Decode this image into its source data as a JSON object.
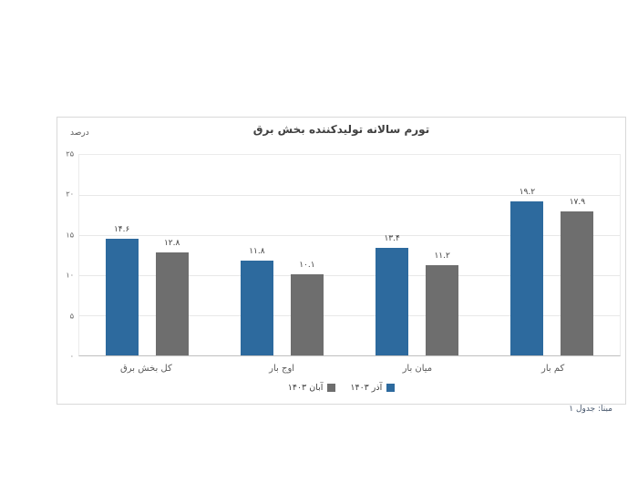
{
  "page": {
    "source_note": "مبنا: جدول ۱"
  },
  "chart_data": {
    "type": "bar",
    "title": "تورم سالانه تولیدکننده بخش برق",
    "unit_label": "درصد",
    "xlabel": "",
    "ylabel": "درصد",
    "ylim": [
      0,
      25
    ],
    "grid": true,
    "legend_position": "bottom-center",
    "yticks": [
      {
        "value": 25,
        "label": "۲۵"
      },
      {
        "value": 20,
        "label": "۲۰"
      },
      {
        "value": 15,
        "label": "۱۵"
      },
      {
        "value": 10,
        "label": "۱۰"
      },
      {
        "value": 5,
        "label": "۵"
      },
      {
        "value": 0,
        "label": "۰"
      }
    ],
    "categories": [
      "کل بخش برق",
      "اوج بار",
      "میان بار",
      "کم بار"
    ],
    "series": [
      {
        "name": "آذر ۱۴۰۳",
        "color": "#2D6A9E",
        "values": [
          14.6,
          11.8,
          13.4,
          19.2
        ],
        "value_labels": [
          "۱۴.۶",
          "۱۱.۸",
          "۱۳.۴",
          "۱۹.۲"
        ]
      },
      {
        "name": "آبان ۱۴۰۳",
        "color": "#6E6E6E",
        "values": [
          12.8,
          10.1,
          11.2,
          17.9
        ],
        "value_labels": [
          "۱۲.۸",
          "۱۰.۱",
          "۱۱.۲",
          "۱۷.۹"
        ]
      }
    ],
    "colors": {
      "series_1": "#2D6A9E",
      "series_2": "#6E6E6E",
      "gridline": "#e8e8e8",
      "axis_line": "#bfbfbf",
      "border": "#d9d9d9",
      "text": "#404040"
    }
  }
}
